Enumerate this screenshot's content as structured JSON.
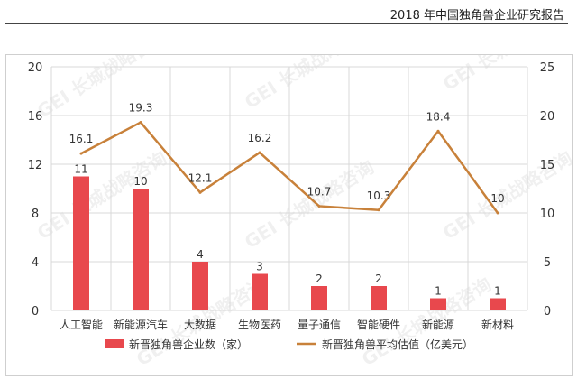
{
  "header": {
    "title": "2018 年中国独角兽企业研究报告"
  },
  "colors": {
    "bar": "#e8484d",
    "line": "#c8813a",
    "grid": "#d9d9d9",
    "axis_text": "#333333"
  },
  "watermark": {
    "logo": "GEI",
    "text": "长城战略咨询"
  },
  "chart_data": {
    "type": "bar",
    "categories": [
      "人工智能",
      "新能源汽车",
      "大数据",
      "生物医药",
      "量子通信",
      "智能硬件",
      "新能源",
      "新材料"
    ],
    "series": [
      {
        "name": "新晋独角兽企业数（家）",
        "type": "bar",
        "axis": "left",
        "values": [
          11,
          10,
          4,
          3,
          2,
          2,
          1,
          1
        ]
      },
      {
        "name": "新晋独角兽平均估值（亿美元）",
        "type": "line",
        "axis": "right",
        "values": [
          16.1,
          19.3,
          12.1,
          16.2,
          10.7,
          10.3,
          18.4,
          10
        ]
      }
    ],
    "y_left": {
      "ylim": [
        0,
        20
      ],
      "ticks": [
        "0",
        "4",
        "8",
        "12",
        "16",
        "20"
      ]
    },
    "y_right": {
      "ylim": [
        0,
        25
      ],
      "ticks": [
        "0",
        "5",
        "10",
        "15",
        "20",
        "25"
      ]
    },
    "grid": true,
    "legend_position": "bottom"
  }
}
